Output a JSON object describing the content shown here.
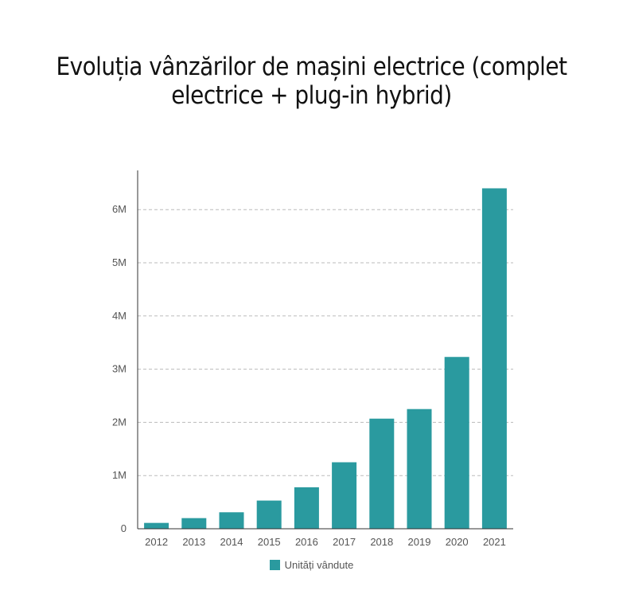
{
  "chart_data": {
    "type": "bar",
    "title": "Evoluția vânzărilor de mașini electrice (complet electrice + plug-in hybrid)",
    "categories": [
      "2012",
      "2013",
      "2014",
      "2015",
      "2016",
      "2017",
      "2018",
      "2019",
      "2020",
      "2021"
    ],
    "series": [
      {
        "name": "Unități vândute",
        "values": [
          110000,
          200000,
          310000,
          530000,
          780000,
          1250000,
          2070000,
          2250000,
          3230000,
          6400000
        ]
      }
    ],
    "y_ticks": [
      {
        "value": 0,
        "label": "0"
      },
      {
        "value": 1000000,
        "label": "1M"
      },
      {
        "value": 2000000,
        "label": "2M"
      },
      {
        "value": 3000000,
        "label": "3M"
      },
      {
        "value": 4000000,
        "label": "4M"
      },
      {
        "value": 5000000,
        "label": "5M"
      },
      {
        "value": 6000000,
        "label": "6M"
      }
    ],
    "ylim": [
      0,
      6700000
    ],
    "grid": true,
    "legend": "bottom",
    "bar_color": "#2a9a9f"
  }
}
